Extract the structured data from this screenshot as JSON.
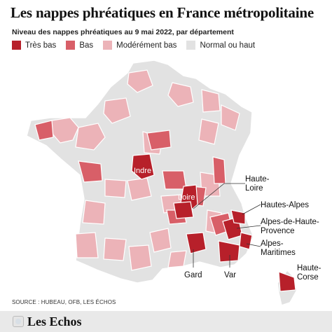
{
  "header": {
    "title": "Les nappes phréatiques en France métropolitaine",
    "subtitle": "Niveau des nappes phréatiques au 9 mai 2022, par département"
  },
  "legend": [
    {
      "label": "Très bas",
      "color": "#b7202a"
    },
    {
      "label": "Bas",
      "color": "#d85f68"
    },
    {
      "label": "Modérément bas",
      "color": "#ecb3b8"
    },
    {
      "label": "Normal ou haut",
      "color": "#e2e2e2"
    }
  ],
  "map": {
    "labels": {
      "indre": "Indre",
      "loire": "Loire",
      "haute_loire": "Haute-\nLoire",
      "hautes_alpes": "Hautes-Alpes",
      "alpes_haute_provence": "Alpes-de-Haute-\nProvence",
      "alpes_maritimes": "Alpes-\nMaritimes",
      "gard": "Gard",
      "var": "Var",
      "haute_corse": "Haute-\nCorse"
    }
  },
  "footer": {
    "source": "SOURCE : HUBEAU, OFB, LES ÉCHOS",
    "brand": "Les Echos"
  }
}
